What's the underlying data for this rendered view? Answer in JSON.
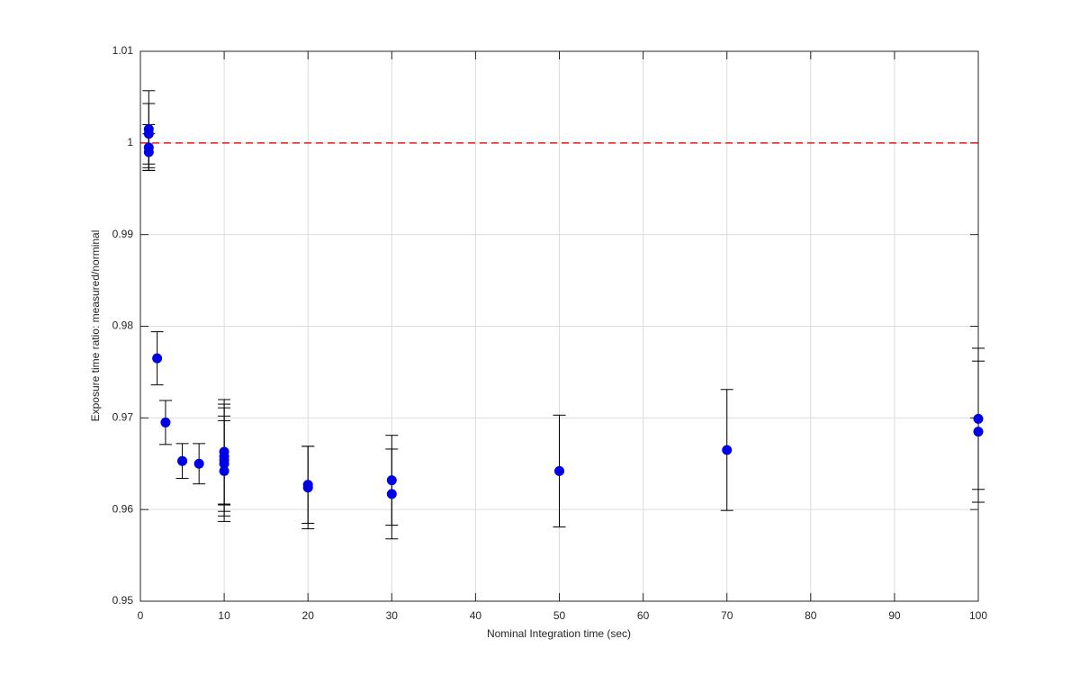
{
  "chart_data": {
    "type": "scatter",
    "x_label": "Nominal Integration time (sec)",
    "y_label": "Exposure time ratio: measured/norminal",
    "xlim": [
      0,
      100
    ],
    "ylim": [
      0.95,
      1.01
    ],
    "xticks": [
      0,
      10,
      20,
      30,
      40,
      50,
      60,
      70,
      80,
      90,
      100
    ],
    "yticks": [
      0.95,
      0.96,
      0.97,
      0.98,
      0.99,
      1,
      1.01
    ],
    "grid": true,
    "reference_line": {
      "value": 1,
      "color": "#e41a1c"
    },
    "series": [
      {
        "color": "#0000e6",
        "x": [
          1,
          1,
          1,
          1,
          2,
          3,
          5,
          7,
          10,
          10,
          10,
          10,
          10,
          20,
          20,
          30,
          30,
          50,
          70,
          100,
          100
        ],
        "values": [
          1.0015,
          1.001,
          0.9995,
          0.999,
          0.9765,
          0.9695,
          0.9653,
          0.965,
          0.9663,
          0.9658,
          0.9654,
          0.965,
          0.9642,
          0.9627,
          0.9624,
          0.9632,
          0.9617,
          0.9642,
          0.9665,
          0.9699,
          0.9685
        ],
        "errors": [
          0.0042,
          0.0033,
          0.0025,
          0.002,
          0.0029,
          0.0024,
          0.0019,
          0.0022,
          0.0057,
          0.0053,
          0.0061,
          0.0052,
          0.0055,
          0.0042,
          0.0045,
          0.0049,
          0.0049,
          0.0061,
          0.0066,
          0.0077,
          0.0077
        ]
      }
    ]
  }
}
